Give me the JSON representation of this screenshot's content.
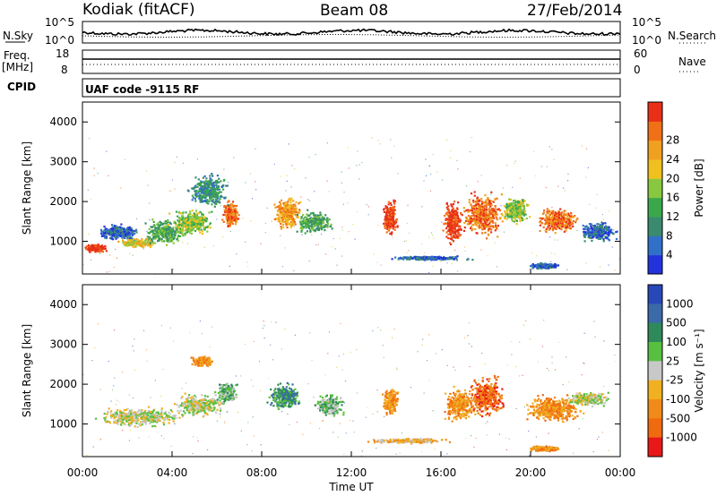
{
  "header": {
    "station": "Kodiak (fitACF)",
    "beam": "Beam 08",
    "date": "27/Feb/2014"
  },
  "noise_panel": {
    "left_label": "N.Sky",
    "right_label": "N.Search",
    "left_ticks": [
      "10^5",
      "10^0"
    ],
    "right_ticks": [
      "10^5",
      "10^0"
    ]
  },
  "freq_panel": {
    "left_label_line1": "Freq.",
    "left_label_line2": "[MHz]",
    "left_ticks": [
      "18",
      "8"
    ],
    "right_label": "Nave",
    "right_ticks": [
      "60",
      "0"
    ]
  },
  "cpid": {
    "label": "CPID",
    "text": "UAF code -9115 RF"
  },
  "x_axis": {
    "title": "Time UT",
    "ticks": [
      "00:00",
      "04:00",
      "08:00",
      "12:00",
      "16:00",
      "20:00",
      "00:00"
    ]
  },
  "power_panel": {
    "ylabel": "Slant Range [km]",
    "yticks": [
      "1000",
      "2000",
      "3000",
      "4000"
    ],
    "colorbar_label": "Power [dB]",
    "colorbar_ticks": [
      "4",
      "8",
      "12",
      "16",
      "20",
      "24",
      "28"
    ],
    "colors": [
      "#2233dd",
      "#3070c8",
      "#3a8a70",
      "#3aa84a",
      "#88c840",
      "#f0c020",
      "#f0a020",
      "#f07018",
      "#e83018"
    ]
  },
  "velocity_panel": {
    "ylabel": "Slant Range [km]",
    "yticks": [
      "1000",
      "2000",
      "3000",
      "4000"
    ],
    "colorbar_label": "Velocity [m s⁻¹]",
    "colorbar_ticks": [
      "1000",
      "500",
      "100",
      "25",
      "-25",
      "-100",
      "-500",
      "-1000"
    ],
    "colors": [
      "#2848b8",
      "#3a6aa8",
      "#2e8a5a",
      "#58c040",
      "#c8c8c8",
      "#f0b020",
      "#f08a18",
      "#f06a10",
      "#e81818"
    ]
  },
  "chart_data": {
    "type": "heatmap",
    "x_range_hours": [
      0,
      24
    ],
    "y_range_km": [
      180,
      4500
    ],
    "power_blobs": [
      {
        "t": 0.6,
        "r": 850,
        "dt": 0.8,
        "dr": 150,
        "lvl": 8
      },
      {
        "t": 1.5,
        "r": 1250,
        "dt": 1.6,
        "dr": 300,
        "lvl": 1
      },
      {
        "t": 2.4,
        "r": 980,
        "dt": 1.4,
        "dr": 150,
        "lvl": 5
      },
      {
        "t": 3.6,
        "r": 1250,
        "dt": 1.4,
        "dr": 450,
        "lvl": 3
      },
      {
        "t": 4.8,
        "r": 1500,
        "dt": 1.6,
        "dr": 500,
        "lvl": 4
      },
      {
        "t": 6.6,
        "r": 1700,
        "dt": 0.6,
        "dr": 500,
        "lvl": 7
      },
      {
        "t": 5.6,
        "r": 2300,
        "dt": 1.4,
        "dr": 600,
        "lvl": 2
      },
      {
        "t": 9.1,
        "r": 1750,
        "dt": 1.0,
        "dr": 600,
        "lvl": 6
      },
      {
        "t": 10.3,
        "r": 1500,
        "dt": 1.4,
        "dr": 400,
        "lvl": 3
      },
      {
        "t": 13.7,
        "r": 1600,
        "dt": 0.6,
        "dr": 600,
        "lvl": 8
      },
      {
        "t": 16.5,
        "r": 1500,
        "dt": 0.7,
        "dr": 800,
        "lvl": 8
      },
      {
        "t": 17.8,
        "r": 1700,
        "dt": 1.5,
        "dr": 800,
        "lvl": 7
      },
      {
        "t": 19.3,
        "r": 1800,
        "dt": 1.0,
        "dr": 500,
        "lvl": 4
      },
      {
        "t": 21.2,
        "r": 1550,
        "dt": 1.6,
        "dr": 450,
        "lvl": 7
      },
      {
        "t": 23.0,
        "r": 1250,
        "dt": 1.4,
        "dr": 350,
        "lvl": 1
      },
      {
        "t": 15.5,
        "r": 600,
        "dt": 3.0,
        "dr": 80,
        "lvl": 1
      },
      {
        "t": 20.6,
        "r": 400,
        "dt": 1.2,
        "dr": 100,
        "lvl": 1
      }
    ],
    "velocity_blobs": [
      {
        "t": 2.5,
        "r": 1200,
        "dt": 3.2,
        "dr": 350,
        "lvl": 4
      },
      {
        "t": 5.2,
        "r": 1500,
        "dt": 1.8,
        "dr": 400,
        "lvl": 4
      },
      {
        "t": 6.4,
        "r": 1800,
        "dt": 0.8,
        "dr": 400,
        "lvl": 3
      },
      {
        "t": 5.3,
        "r": 2600,
        "dt": 0.8,
        "dr": 200,
        "lvl": 6
      },
      {
        "t": 9.0,
        "r": 1700,
        "dt": 1.2,
        "dr": 500,
        "lvl": 2
      },
      {
        "t": 11.0,
        "r": 1500,
        "dt": 1.0,
        "dr": 400,
        "lvl": 3
      },
      {
        "t": 13.7,
        "r": 1600,
        "dt": 0.6,
        "dr": 500,
        "lvl": 6
      },
      {
        "t": 16.8,
        "r": 1500,
        "dt": 1.2,
        "dr": 600,
        "lvl": 6
      },
      {
        "t": 18.0,
        "r": 1700,
        "dt": 1.4,
        "dr": 700,
        "lvl": 7
      },
      {
        "t": 21.0,
        "r": 1400,
        "dt": 2.2,
        "dr": 500,
        "lvl": 6
      },
      {
        "t": 22.5,
        "r": 1650,
        "dt": 1.6,
        "dr": 250,
        "lvl": 4
      },
      {
        "t": 14.5,
        "r": 600,
        "dt": 3.0,
        "dr": 100,
        "lvl": 5
      },
      {
        "t": 20.6,
        "r": 400,
        "dt": 1.2,
        "dr": 100,
        "lvl": 6
      }
    ]
  }
}
